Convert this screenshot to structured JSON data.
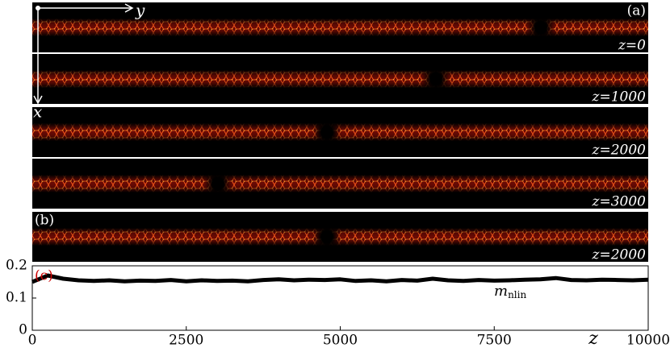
{
  "panels": [
    {
      "tag": "(a)",
      "label": "z=0"
    },
    {
      "label": "z=1000"
    },
    {
      "label": "z=2000"
    },
    {
      "label": "z=3000"
    },
    {
      "tag": "(b)",
      "label": "z=2000"
    }
  ],
  "axes_arrows": {
    "horizontal": "y",
    "vertical": "x"
  },
  "chart_data": {
    "type": "line",
    "panel_tag": "(c)",
    "x_label": "z",
    "annotation": {
      "text": "m",
      "subscript": "nlin"
    },
    "x": [
      0,
      250,
      500,
      750,
      1000,
      1250,
      1500,
      1750,
      2000,
      2250,
      2500,
      2750,
      3000,
      3250,
      3500,
      3750,
      4000,
      4250,
      4500,
      4750,
      5000,
      5250,
      5500,
      5750,
      6000,
      6250,
      6500,
      6750,
      7000,
      7250,
      7500,
      7750,
      8000,
      8250,
      8500,
      8750,
      9000,
      9250,
      9500,
      9750,
      10000
    ],
    "series": [
      {
        "name": "m_nlin",
        "color": "#000000",
        "values": [
          0.15,
          0.17,
          0.16,
          0.155,
          0.153,
          0.155,
          0.152,
          0.154,
          0.153,
          0.156,
          0.152,
          0.155,
          0.153,
          0.154,
          0.152,
          0.156,
          0.158,
          0.155,
          0.157,
          0.156,
          0.158,
          0.153,
          0.155,
          0.152,
          0.156,
          0.154,
          0.16,
          0.155,
          0.153,
          0.156,
          0.154,
          0.155,
          0.157,
          0.158,
          0.162,
          0.156,
          0.155,
          0.157,
          0.156,
          0.155,
          0.157
        ]
      }
    ],
    "xlim": [
      0,
      10000
    ],
    "ylim": [
      0,
      0.2
    ],
    "xticks": [
      0,
      2500,
      5000,
      7500,
      10000
    ],
    "yticks": [
      0,
      0.1,
      0.2
    ]
  }
}
